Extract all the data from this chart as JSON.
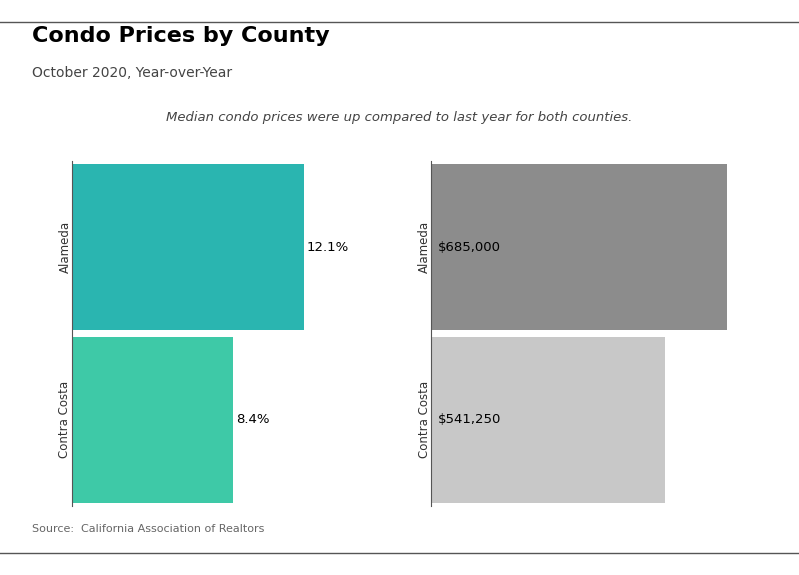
{
  "title": "Condo Prices by County",
  "subtitle": "October 2020, Year-over-Year",
  "annotation": "Median condo prices were up compared to last year for both counties.",
  "source": "Source:  California Association of Realtors",
  "categories": [
    "Alameda",
    "Contra Costa"
  ],
  "pct_values": [
    12.1,
    8.4
  ],
  "price_values": [
    685000,
    541250
  ],
  "pct_labels": [
    "12.1%",
    "8.4%"
  ],
  "price_labels": [
    "$685,000",
    "$541,250"
  ],
  "pct_colors": [
    "#2ab5b0",
    "#3ec9a7"
  ],
  "price_colors": [
    "#8c8c8c",
    "#c8c8c8"
  ],
  "background_color": "#ffffff",
  "title_fontsize": 16,
  "subtitle_fontsize": 10,
  "annotation_fontsize": 9.5,
  "source_fontsize": 8,
  "label_fontsize": 9.5,
  "category_fontsize": 8.5,
  "pct_max": 15,
  "price_max": 760000
}
